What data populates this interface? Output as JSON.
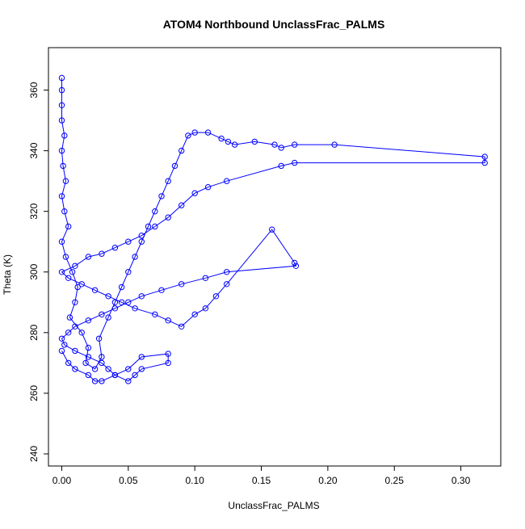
{
  "chart_data": {
    "type": "scatter",
    "title": "ATOM4 Northbound UnclassFrac_PALMS",
    "xlabel": "UnclassFrac_PALMS",
    "ylabel": "Theta (K)",
    "xlim": [
      -0.01,
      0.33
    ],
    "ylim": [
      236,
      374
    ],
    "x_ticks": [
      0.0,
      0.05,
      0.1,
      0.15,
      0.2,
      0.25,
      0.3
    ],
    "x_tick_labels": [
      "0.00",
      "0.05",
      "0.10",
      "0.15",
      "0.20",
      "0.25",
      "0.30"
    ],
    "y_ticks": [
      240,
      260,
      280,
      300,
      320,
      340,
      360
    ],
    "y_tick_labels": [
      "240",
      "260",
      "280",
      "300",
      "320",
      "340",
      "360"
    ],
    "grid": false,
    "legend": "none",
    "series_color": "#0000ff",
    "marker": "open-circle",
    "connected": true,
    "series": [
      {
        "x": [
          0.0,
          0.0,
          0.0,
          0.0,
          0.002,
          0.0,
          0.001,
          0.003,
          0.0,
          0.002,
          0.005,
          0.0,
          0.003,
          0.008,
          0.012,
          0.01,
          0.006,
          0.015,
          0.02,
          0.018,
          0.025,
          0.03,
          0.028,
          0.035,
          0.04,
          0.045,
          0.05,
          0.055,
          0.06,
          0.065,
          0.07,
          0.075,
          0.08,
          0.085,
          0.09,
          0.095,
          0.1,
          0.11,
          0.12,
          0.125,
          0.13,
          0.145,
          0.16,
          0.165,
          0.175,
          0.205,
          0.318,
          0.318,
          0.175,
          0.165,
          0.124,
          0.11,
          0.1,
          0.09,
          0.08,
          0.07,
          0.06,
          0.05,
          0.04,
          0.03,
          0.02,
          0.01,
          0.0,
          0.005,
          0.015,
          0.025,
          0.035,
          0.045,
          0.055,
          0.07,
          0.08,
          0.09,
          0.1,
          0.108,
          0.116,
          0.124,
          0.158,
          0.175,
          0.176,
          0.124,
          0.108,
          0.09,
          0.075,
          0.06,
          0.05,
          0.04,
          0.03,
          0.02,
          0.01,
          0.005,
          0.0,
          0.002,
          0.01,
          0.02,
          0.03,
          0.035,
          0.04,
          0.05,
          0.055,
          0.06,
          0.08,
          0.08,
          0.06,
          0.05,
          0.04,
          0.03,
          0.025,
          0.02,
          0.01,
          0.005,
          0.0
        ],
        "y": [
          364,
          360,
          355,
          350,
          345,
          340,
          335,
          330,
          325,
          320,
          315,
          310,
          305,
          300,
          295,
          290,
          285,
          280,
          275,
          270,
          268,
          272,
          278,
          285,
          290,
          295,
          300,
          305,
          310,
          315,
          320,
          325,
          330,
          335,
          340,
          345,
          346,
          346,
          344,
          343,
          342,
          343,
          342,
          341,
          342,
          342,
          338,
          336,
          336,
          335,
          330,
          328,
          326,
          322,
          318,
          315,
          312,
          310,
          308,
          306,
          305,
          302,
          300,
          298,
          296,
          294,
          292,
          290,
          288,
          286,
          284,
          282,
          286,
          288,
          292,
          296,
          314,
          303,
          302,
          300,
          298,
          296,
          294,
          292,
          290,
          288,
          286,
          284,
          282,
          280,
          278,
          276,
          274,
          272,
          270,
          268,
          266,
          264,
          266,
          268,
          270,
          273,
          272,
          268,
          266,
          264,
          264,
          266,
          268,
          270,
          274
        ]
      }
    ]
  }
}
